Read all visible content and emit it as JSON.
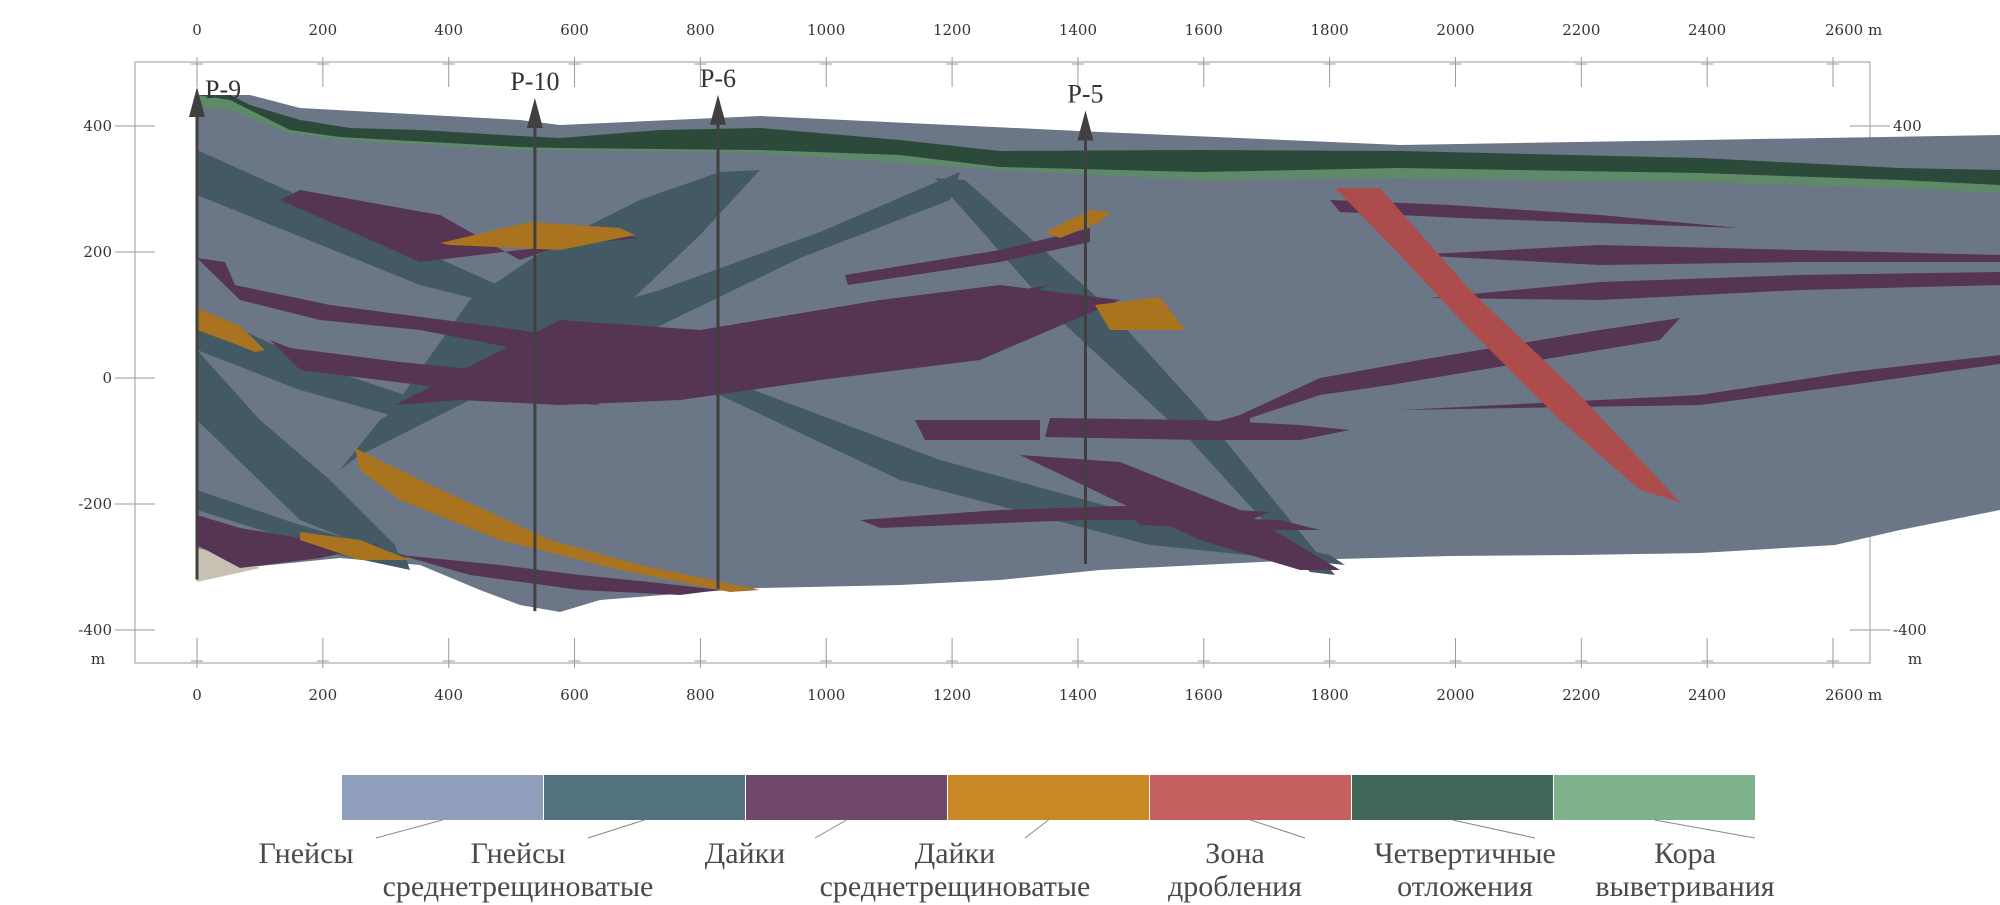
{
  "section": {
    "x_axis": {
      "unit": "m",
      "ticks": [
        0,
        200,
        400,
        600,
        800,
        1000,
        1200,
        1400,
        1600,
        1800,
        2000,
        2200,
        2400,
        2600
      ],
      "tick_labels": [
        "0",
        "200",
        "400",
        "600",
        "800",
        "1000",
        "1200",
        "1400",
        "1600",
        "1800",
        "2000",
        "2200",
        "2400",
        "2600 m"
      ]
    },
    "y_axis": {
      "unit": "m",
      "ticks": [
        400,
        200,
        0,
        -200,
        -400
      ],
      "tick_labels": [
        "400",
        "200",
        "0",
        "-200",
        "-400"
      ]
    },
    "wells": [
      {
        "name": "P-9",
        "x_m": 0,
        "top_m": 500,
        "bottom_m": -320
      },
      {
        "name": "P-10",
        "x_m": 537,
        "top_m": 435,
        "bottom_m": -370
      },
      {
        "name": "P-6",
        "x_m": 828,
        "top_m": 440,
        "bottom_m": -335
      },
      {
        "name": "P-5",
        "x_m": 1412,
        "top_m": 415,
        "bottom_m": -295
      }
    ]
  },
  "colors": {
    "gneiss": "#6b7686",
    "gneiss_fractured": "#435a64",
    "dykes": "#553553",
    "dykes_fractured": "#aa731f",
    "crush_zone": "#ad4c4c",
    "quaternary": "#2c4a3a",
    "weathering_crust": "#5e8a68",
    "base_sediment": "#c8c0b2"
  },
  "legend": [
    {
      "key": "gneiss",
      "line1": "Гнейсы",
      "line2": "",
      "color": "#8f9fbb"
    },
    {
      "key": "gneiss_fractured",
      "line1": "Гнейсы",
      "line2": "среднетрещиноватые",
      "color": "#52727f"
    },
    {
      "key": "dykes",
      "line1": "Дайки",
      "line2": "",
      "color": "#6f476b"
    },
    {
      "key": "dykes_fractured",
      "line1": "Дайки",
      "line2": "среднетрещиноватые",
      "color": "#c98826"
    },
    {
      "key": "crush_zone",
      "line1": "Зона",
      "line2": "дробления",
      "color": "#c46060"
    },
    {
      "key": "quaternary",
      "line1": "Четвертичные",
      "line2": "отложения",
      "color": "#3f6656"
    },
    {
      "key": "weathering_crust",
      "line1": "Кора",
      "line2": "выветривания",
      "color": "#7db28a"
    }
  ]
}
